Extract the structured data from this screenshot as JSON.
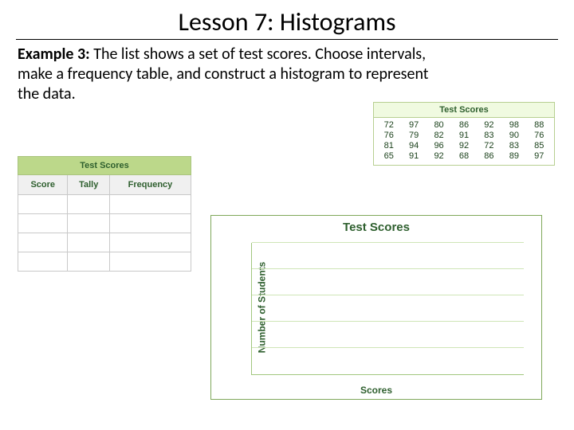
{
  "title": "Lesson 7: Histograms",
  "prompt_bold": "Example 3:",
  "prompt_text": " The list shows a set of test scores. Choose intervals, make a frequency table, and construct a histogram to represent the data.",
  "data_table": {
    "header": "Test Scores",
    "cols": 8,
    "rows": 4,
    "values": [
      "72",
      "97",
      "80",
      "86",
      "92",
      "98",
      "88",
      "76",
      "79",
      "82",
      "91",
      "83",
      "90",
      "76",
      "81",
      "94",
      "96",
      "92",
      "72",
      "83",
      "85",
      "65",
      "91",
      "92",
      "68",
      "86",
      "89",
      "97"
    ],
    "border_color": "#b7cf91",
    "header_bg": "#f0fae0",
    "text_color": "#1c421c",
    "fontsize": 11
  },
  "freq_table": {
    "main_header": "Test Scores",
    "columns": [
      "Score",
      "Tally",
      "Frequency"
    ],
    "blank_rows": 4,
    "main_bg": "#bcd88a",
    "sub_bg": "#f0f0f0",
    "border_color": "#c9c9c9",
    "text_color": "#2e5f2e",
    "fontsize": 11
  },
  "histogram": {
    "title": "Test Scores",
    "ylabel": "Number of Students",
    "xlabel": "Scores",
    "gridlines": 5,
    "panel_border": "#7fa85a",
    "grid_color": "#cfe5b7",
    "axis_color": "#a1c77e",
    "text_color": "#2e5f2e",
    "title_fontsize": 15,
    "label_fontsize": 12
  },
  "colors": {
    "page_bg": "#ffffff",
    "title_underline": "#000000"
  }
}
